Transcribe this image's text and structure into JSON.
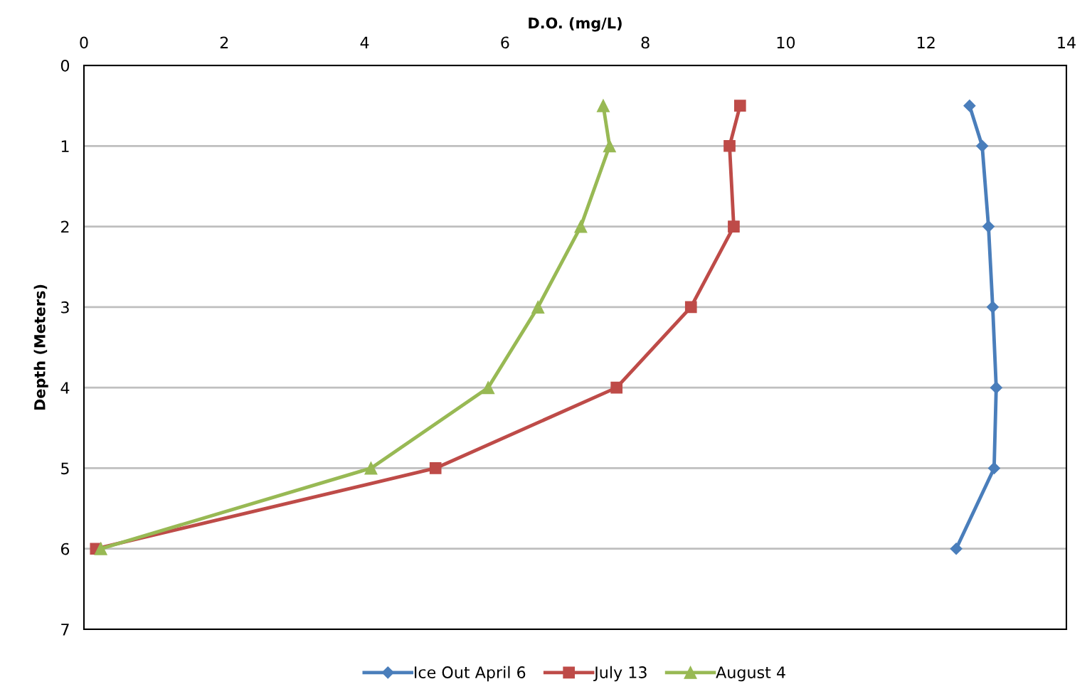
{
  "chart_data": {
    "type": "line",
    "xlabel": "D.O. (mg/L)",
    "ylabel": "Depth (Meters)",
    "xlim": [
      0,
      14
    ],
    "xticks": [
      0,
      2,
      4,
      6,
      8,
      10,
      12,
      14
    ],
    "ylim": [
      7,
      0
    ],
    "yticks": [
      0,
      1,
      2,
      3,
      4,
      5,
      6,
      7
    ],
    "grid": "y",
    "legend": "bottom",
    "line_style": "solid",
    "series": [
      {
        "name": "Ice Out April 6",
        "color": "#4a7ebb",
        "marker": "diamond",
        "x": [
          12.62,
          12.8,
          12.89,
          12.95,
          13.0,
          12.97,
          12.43
        ],
        "values": [
          0.5,
          1,
          2,
          3,
          4,
          5,
          6
        ]
      },
      {
        "name": "July 13",
        "color": "#be4b48",
        "marker": "square",
        "x": [
          9.35,
          9.2,
          9.26,
          8.65,
          7.59,
          5.01,
          0.17
        ],
        "values": [
          0.5,
          1,
          2,
          3,
          4,
          5,
          6
        ]
      },
      {
        "name": "August 4",
        "color": "#98b954",
        "marker": "triangle",
        "x": [
          7.4,
          7.49,
          7.08,
          6.47,
          5.76,
          4.09,
          0.24
        ],
        "values": [
          0.5,
          1,
          2,
          3,
          4,
          5,
          6
        ]
      }
    ]
  }
}
